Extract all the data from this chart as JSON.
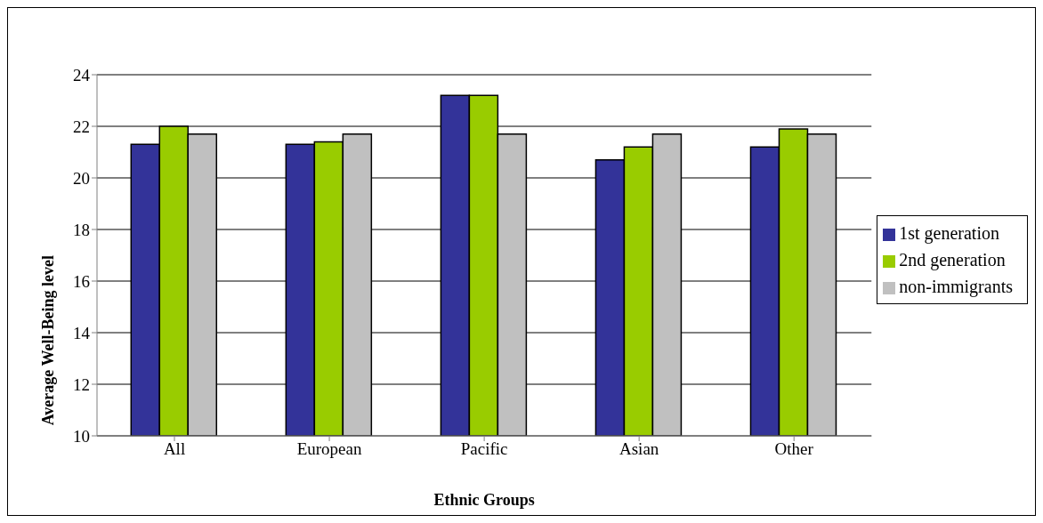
{
  "chart_data": {
    "type": "bar",
    "xlabel": "Ethnic Groups",
    "ylabel": "Average Well-Being level",
    "categories": [
      "All",
      "European",
      "Pacific",
      "Asian",
      "Other"
    ],
    "series": [
      {
        "name": "1st generation",
        "color": "#333399",
        "values": [
          21.3,
          21.3,
          23.2,
          20.7,
          21.2
        ]
      },
      {
        "name": "2nd generation",
        "color": "#99cc00",
        "values": [
          22.0,
          21.4,
          23.2,
          21.2,
          21.9
        ]
      },
      {
        "name": "non-immigrants",
        "color": "#c0c0c0",
        "values": [
          21.7,
          21.7,
          21.7,
          21.7,
          21.7
        ]
      }
    ],
    "ylim": [
      10,
      24
    ],
    "yticks": [
      10,
      12,
      14,
      16,
      18,
      20,
      22,
      24
    ],
    "grid": "y",
    "legend": "right"
  }
}
